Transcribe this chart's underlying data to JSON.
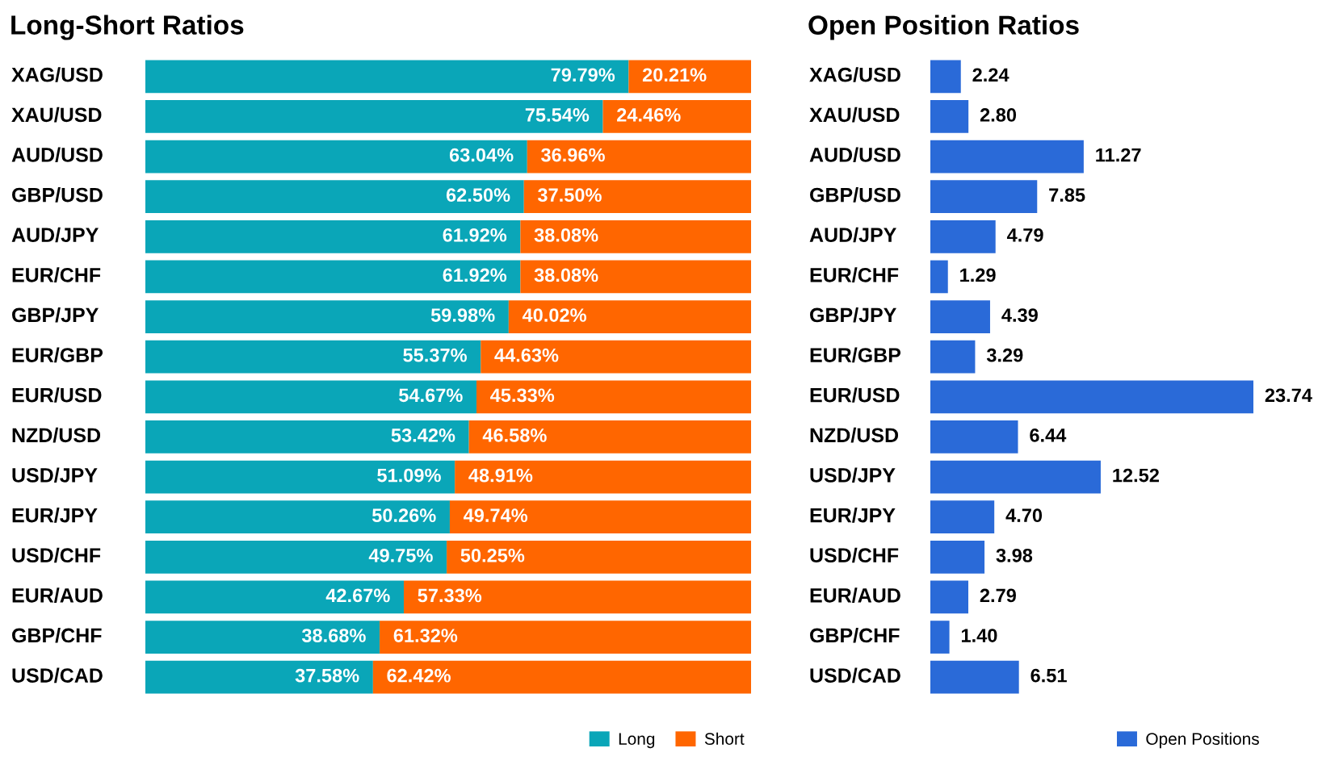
{
  "chart_data": [
    {
      "type": "bar",
      "title": "Long-Short Ratios",
      "orientation": "horizontal",
      "stacked": true,
      "legend": "bottom right",
      "grid": false,
      "categories": [
        "XAG/USD",
        "XAU/USD",
        "AUD/USD",
        "GBP/USD",
        "AUD/JPY",
        "EUR/CHF",
        "GBP/JPY",
        "EUR/GBP",
        "EUR/USD",
        "NZD/USD",
        "USD/JPY",
        "EUR/JPY",
        "USD/CHF",
        "EUR/AUD",
        "GBP/CHF",
        "USD/CAD"
      ],
      "series": [
        {
          "name": "Long",
          "color": "#0aa6b8",
          "values": [
            79.79,
            75.54,
            63.04,
            62.5,
            61.92,
            61.92,
            59.98,
            55.37,
            54.67,
            53.42,
            51.09,
            50.26,
            49.75,
            42.67,
            38.68,
            37.58
          ],
          "value_labels": [
            "79.79%",
            "75.54%",
            "63.04%",
            "62.50%",
            "61.92%",
            "61.92%",
            "59.98%",
            "55.37%",
            "54.67%",
            "53.42%",
            "51.09%",
            "50.26%",
            "49.75%",
            "42.67%",
            "38.68%",
            "37.58%"
          ]
        },
        {
          "name": "Short",
          "color": "#ff6600",
          "values": [
            20.21,
            24.46,
            36.96,
            37.5,
            38.08,
            38.08,
            40.02,
            44.63,
            45.33,
            46.58,
            48.91,
            49.74,
            50.25,
            57.33,
            61.32,
            62.42
          ],
          "value_labels": [
            "20.21%",
            "24.46%",
            "36.96%",
            "37.50%",
            "38.08%",
            "38.08%",
            "40.02%",
            "44.63%",
            "45.33%",
            "46.58%",
            "48.91%",
            "49.74%",
            "50.25%",
            "57.33%",
            "61.32%",
            "62.42%"
          ]
        }
      ]
    },
    {
      "type": "bar",
      "title": "Open Position Ratios",
      "orientation": "horizontal",
      "legend": "bottom right",
      "grid": false,
      "categories": [
        "XAG/USD",
        "XAU/USD",
        "AUD/USD",
        "GBP/USD",
        "AUD/JPY",
        "EUR/CHF",
        "GBP/JPY",
        "EUR/GBP",
        "EUR/USD",
        "NZD/USD",
        "USD/JPY",
        "EUR/JPY",
        "USD/CHF",
        "EUR/AUD",
        "GBP/CHF",
        "USD/CAD"
      ],
      "series": [
        {
          "name": "Open Positions",
          "color": "#2a6ad8",
          "values": [
            2.24,
            2.8,
            11.27,
            7.85,
            4.79,
            1.29,
            4.39,
            3.29,
            23.74,
            6.44,
            12.52,
            4.7,
            3.98,
            2.79,
            1.4,
            6.51
          ],
          "value_labels": [
            "2.24",
            "2.80",
            "11.27",
            "7.85",
            "4.79",
            "1.29",
            "4.39",
            "3.29",
            "23.74",
            "6.44",
            "12.52",
            "4.70",
            "3.98",
            "2.79",
            "1.40",
            "6.51"
          ]
        }
      ]
    }
  ]
}
